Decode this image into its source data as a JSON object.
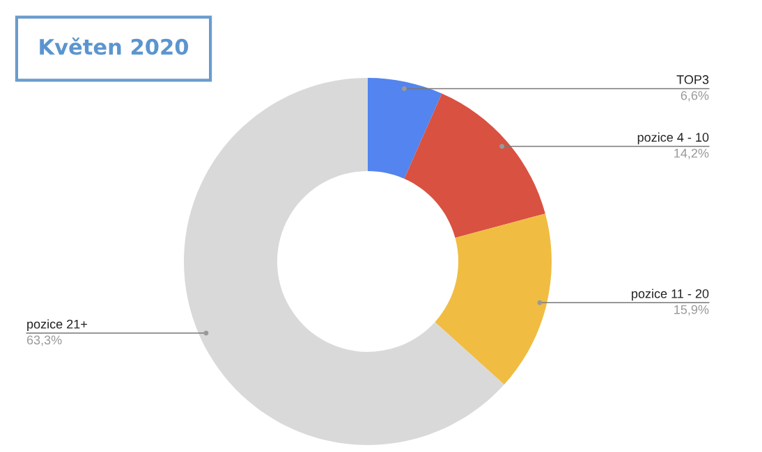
{
  "chart_data": {
    "type": "donut",
    "title": "Květen 2020",
    "categories": [
      "TOP3",
      "pozice 4 - 10",
      "pozice 11 - 20",
      "pozice 21+"
    ],
    "values": [
      6.6,
      14.2,
      15.9,
      63.3
    ],
    "colors": [
      "#5384ef",
      "#d95140",
      "#f0bd42",
      "#d9d9d9"
    ],
    "value_labels": [
      "6,6%",
      "14,2%",
      "15,9%",
      "63,3%"
    ],
    "legend": false
  }
}
